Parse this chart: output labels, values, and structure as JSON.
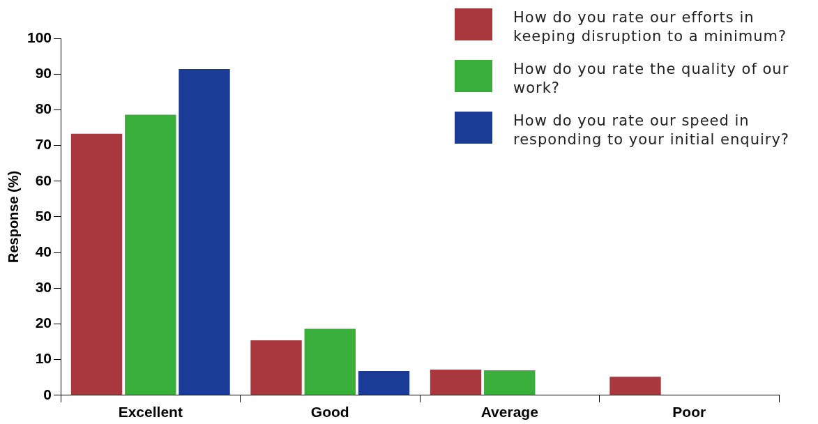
{
  "chart_data": {
    "type": "bar",
    "ylabel": "Response (%)",
    "categories": [
      "Excellent",
      "Good",
      "Average",
      "Poor"
    ],
    "series": [
      {
        "name": "How do you rate our efforts in keeping disruption to a minimum?",
        "color": "#a8383d",
        "values": [
          73.3,
          15.4,
          7.2,
          5.2
        ]
      },
      {
        "name": "How do you rate the quality of our work?",
        "color": "#3aae3a",
        "values": [
          78.6,
          18.6,
          7.0,
          null
        ]
      },
      {
        "name": "How do you rate our speed in responding to your initial enquiry?",
        "color": "#1b3c96",
        "values": [
          91.4,
          6.8,
          null,
          null
        ]
      }
    ],
    "ylim": [
      0,
      100
    ],
    "yticks": [
      0,
      10,
      20,
      30,
      40,
      50,
      60,
      70,
      80,
      90,
      100
    ],
    "grid": false,
    "legend": "top right"
  }
}
